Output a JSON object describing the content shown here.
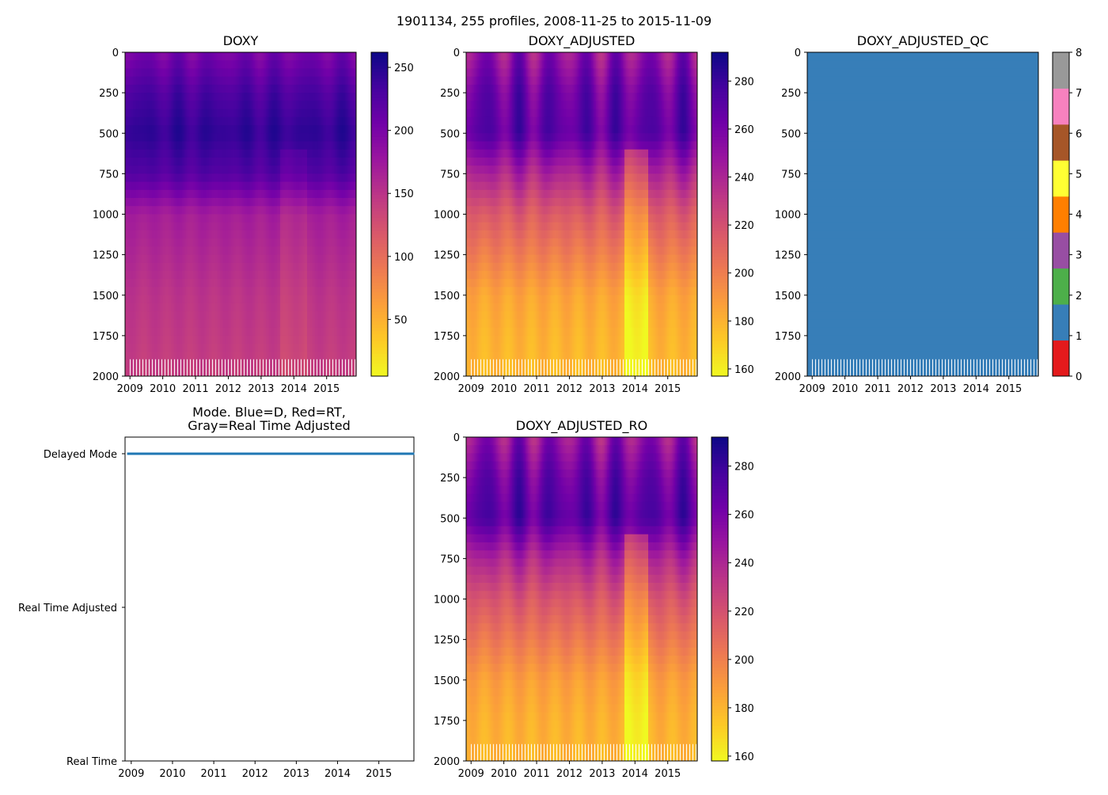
{
  "figure": {
    "title": "1901134, 255 profiles, 2008-11-25 to 2015-11-09"
  },
  "colors": {
    "qc_palette": [
      "#e41a1c",
      "#377eb8",
      "#4daf4a",
      "#984ea3",
      "#ff7f00",
      "#ffff33",
      "#a65628",
      "#f781bf",
      "#999999"
    ],
    "qc_fill": "#377eb8",
    "mode_line": "#1f77b4",
    "plasma_stops": [
      "#f0f921",
      "#fdca26",
      "#fb9f3a",
      "#ed7953",
      "#d8576b",
      "#bd3786",
      "#9c179e",
      "#7201a8",
      "#46039f",
      "#0d0887"
    ]
  },
  "chart_data": [
    {
      "id": "doxy",
      "type": "heatmap",
      "title": "DOXY",
      "xlabel": "",
      "ylabel": "",
      "xlim": [
        2008.85,
        2015.9
      ],
      "xticks": [
        "2009",
        "2010",
        "2011",
        "2012",
        "2013",
        "2014",
        "2015"
      ],
      "ylim": [
        2000,
        0
      ],
      "yticks": [
        "0",
        "250",
        "500",
        "750",
        "1000",
        "1250",
        "1500",
        "1750",
        "2000"
      ],
      "colorbar": {
        "cmap": "plasma",
        "range": [
          5,
          262
        ],
        "ticks": [
          "50",
          "100",
          "150",
          "200",
          "250"
        ]
      },
      "depth_profile": [
        [
          0,
          200
        ],
        [
          250,
          230
        ],
        [
          500,
          245
        ],
        [
          750,
          225
        ],
        [
          1000,
          170
        ],
        [
          1250,
          160
        ],
        [
          1500,
          150
        ],
        [
          1750,
          145
        ],
        [
          2000,
          140
        ]
      ],
      "seasonal_amplitude": 10,
      "highlight_band": {
        "x_range": [
          2013.6,
          2014.4
        ],
        "delta": -10
      }
    },
    {
      "id": "doxy_adjusted",
      "type": "heatmap",
      "title": "DOXY_ADJUSTED",
      "xlabel": "",
      "ylabel": "",
      "xlim": [
        2008.85,
        2015.9
      ],
      "xticks": [
        "2009",
        "2010",
        "2011",
        "2012",
        "2013",
        "2014",
        "2015"
      ],
      "ylim": [
        2000,
        0
      ],
      "yticks": [
        "0",
        "250",
        "500",
        "750",
        "1000",
        "1250",
        "1500",
        "1750",
        "2000"
      ],
      "colorbar": {
        "cmap": "plasma",
        "range": [
          157,
          292
        ],
        "ticks": [
          "160",
          "180",
          "200",
          "220",
          "240",
          "260",
          "280"
        ]
      },
      "depth_profile": [
        [
          0,
          250
        ],
        [
          250,
          265
        ],
        [
          500,
          270
        ],
        [
          750,
          240
        ],
        [
          1000,
          215
        ],
        [
          1250,
          200
        ],
        [
          1500,
          185
        ],
        [
          1750,
          180
        ],
        [
          2000,
          178
        ]
      ],
      "seasonal_amplitude": 15,
      "highlight_band": {
        "x_range": [
          2013.7,
          2014.4
        ],
        "delta": -22
      }
    },
    {
      "id": "doxy_adjusted_qc",
      "type": "heatmap",
      "title": "DOXY_ADJUSTED_QC",
      "xlabel": "",
      "ylabel": "",
      "xlim": [
        2008.85,
        2015.9
      ],
      "xticks": [
        "2009",
        "2010",
        "2011",
        "2012",
        "2013",
        "2014",
        "2015"
      ],
      "ylim": [
        2000,
        0
      ],
      "yticks": [
        "0",
        "250",
        "500",
        "750",
        "1000",
        "1250",
        "1500",
        "1750",
        "2000"
      ],
      "colorbar": {
        "cmap": "qualitative",
        "range": [
          0,
          8
        ],
        "ticks": [
          "0",
          "1",
          "2",
          "3",
          "4",
          "5",
          "6",
          "7",
          "8"
        ]
      },
      "qc_value": 1
    },
    {
      "id": "mode",
      "type": "line",
      "title": "Mode. Blue=D, Red=RT,",
      "title_line2": "Gray=Real Time Adjusted",
      "xlabel": "",
      "ylabel": "",
      "xlim": [
        2008.85,
        2015.85
      ],
      "xticks": [
        "2009",
        "2010",
        "2011",
        "2012",
        "2013",
        "2014",
        "2015"
      ],
      "ycategories": [
        "Delayed Mode",
        "Real Time Adjusted",
        "Real Time"
      ],
      "series": [
        {
          "name": "D",
          "x": [
            2008.9,
            2015.86
          ],
          "y": [
            "Delayed Mode",
            "Delayed Mode"
          ]
        }
      ]
    },
    {
      "id": "doxy_adjusted_ro",
      "type": "heatmap",
      "title": "DOXY_ADJUSTED_RO",
      "xlabel": "",
      "ylabel": "",
      "xlim": [
        2008.85,
        2015.9
      ],
      "xticks": [
        "2009",
        "2010",
        "2011",
        "2012",
        "2013",
        "2014",
        "2015"
      ],
      "ylim": [
        2000,
        0
      ],
      "yticks": [
        "0",
        "250",
        "500",
        "750",
        "1000",
        "1250",
        "1500",
        "1750",
        "2000"
      ],
      "colorbar": {
        "cmap": "plasma",
        "range": [
          158,
          292
        ],
        "ticks": [
          "160",
          "180",
          "200",
          "220",
          "240",
          "260",
          "280"
        ]
      },
      "depth_profile": [
        [
          0,
          250
        ],
        [
          250,
          265
        ],
        [
          500,
          272
        ],
        [
          750,
          240
        ],
        [
          1000,
          218
        ],
        [
          1250,
          203
        ],
        [
          1500,
          188
        ],
        [
          1750,
          182
        ],
        [
          2000,
          180
        ]
      ],
      "seasonal_amplitude": 15,
      "highlight_band": {
        "x_range": [
          2013.7,
          2014.4
        ],
        "delta": -22
      }
    }
  ]
}
